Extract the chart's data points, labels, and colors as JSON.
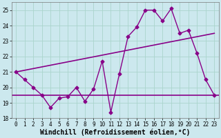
{
  "xlabel": "Windchill (Refroidissement éolien,°C)",
  "bg_color": "#cce8ee",
  "grid_color": "#aad4cc",
  "line_color": "#880088",
  "hours": [
    0,
    1,
    2,
    3,
    4,
    5,
    6,
    7,
    8,
    9,
    10,
    11,
    12,
    13,
    14,
    15,
    16,
    17,
    18,
    19,
    20,
    21,
    22,
    23
  ],
  "windchill": [
    21.0,
    20.5,
    20.0,
    19.5,
    18.7,
    19.3,
    19.4,
    20.0,
    19.1,
    19.9,
    21.7,
    18.4,
    20.9,
    23.3,
    23.9,
    25.0,
    25.0,
    24.3,
    25.1,
    23.5,
    23.7,
    22.2,
    20.5,
    19.5
  ],
  "trend_x": [
    0,
    23
  ],
  "trend_y": [
    21.0,
    23.5
  ],
  "hline_y": 19.5,
  "ylim": [
    18.0,
    25.5
  ],
  "yticks": [
    18,
    19,
    20,
    21,
    22,
    23,
    24,
    25
  ],
  "xlim": [
    -0.5,
    23.5
  ],
  "xticks": [
    0,
    1,
    2,
    3,
    4,
    5,
    6,
    7,
    8,
    9,
    10,
    11,
    12,
    13,
    14,
    15,
    16,
    17,
    18,
    19,
    20,
    21,
    22,
    23
  ],
  "tick_fontsize": 5.5,
  "xlabel_fontsize": 7.0,
  "marker": "D",
  "marker_size": 2.5,
  "linewidth": 1.0
}
